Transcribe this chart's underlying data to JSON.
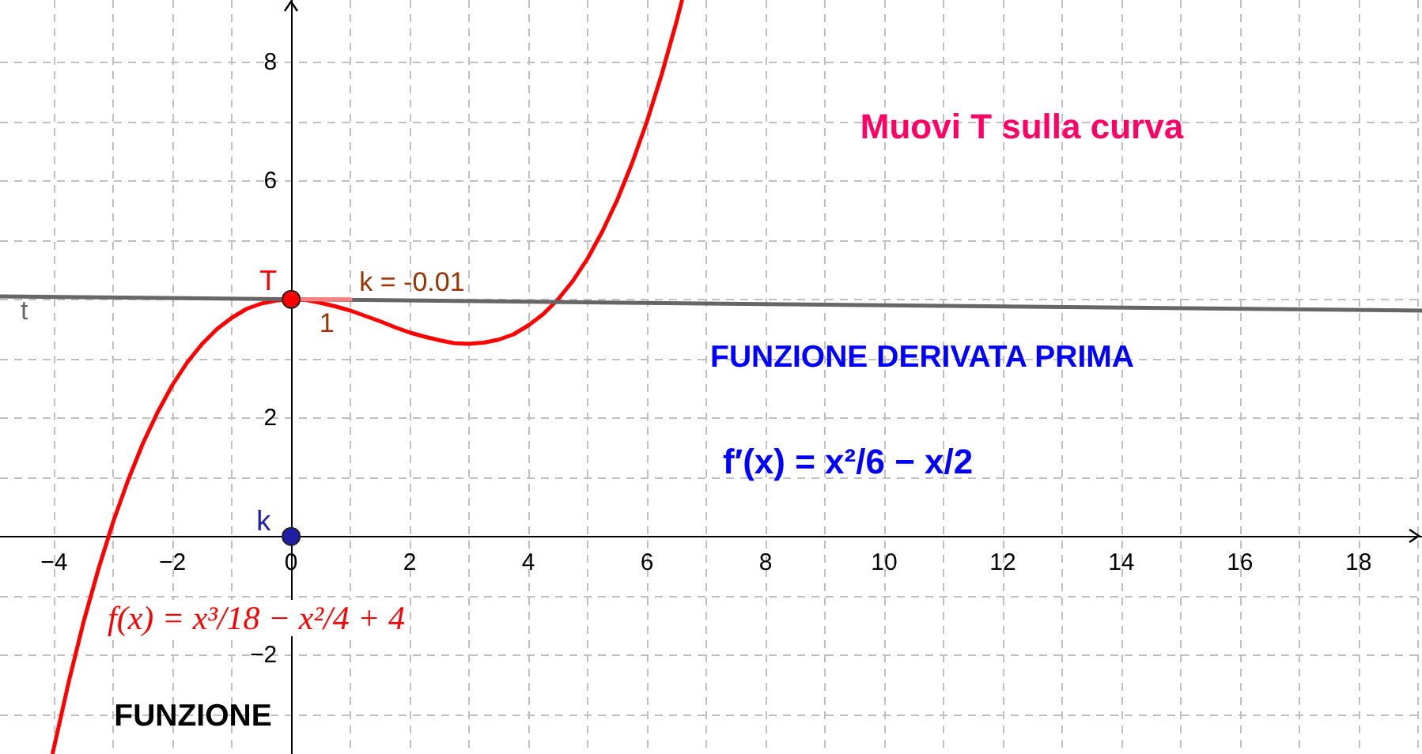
{
  "chart_data": {
    "type": "line",
    "annotations": [
      "Muovi T sulla curva",
      "FUNZIONE DERIVATA PRIMA",
      "f′(x) = x²/6 − x/2",
      "f(x) = x³/18 − x²/4 + 4",
      "FUNZIONE",
      {
        "text": "k = -0.01",
        "x": 1.15,
        "y": 4
      },
      {
        "text": "1",
        "x": 0.6,
        "y": 4
      }
    ],
    "xlim": [
      -4.91,
      19.07
    ],
    "ylim": [
      -3.67,
      9.05
    ],
    "xticks": [
      {
        "value": -4,
        "label": "−4"
      },
      {
        "value": -3,
        "label": null
      },
      {
        "value": -2,
        "label": "−2"
      },
      {
        "value": -1,
        "label": null
      },
      0,
      {
        "value": 1,
        "label": null
      },
      2,
      {
        "value": 3,
        "label": null
      },
      4,
      {
        "value": 5,
        "label": null
      },
      6,
      {
        "value": 7,
        "label": null
      },
      8,
      {
        "value": 9,
        "label": null
      },
      10,
      {
        "value": 11,
        "label": null
      },
      12,
      {
        "value": 13,
        "label": null
      },
      14,
      {
        "value": 15,
        "label": null
      },
      16,
      {
        "value": 17,
        "label": null
      },
      18,
      {
        "value": 19,
        "label": null
      }
    ],
    "yticks": [
      {
        "value": -3,
        "label": null
      },
      {
        "value": -2,
        "label": "−2"
      },
      {
        "value": -1,
        "label": null
      },
      {
        "value": 0,
        "label": null
      },
      {
        "value": 1,
        "label": null
      },
      2,
      {
        "value": 3,
        "label": null
      },
      {
        "value": 4,
        "label": null
      },
      {
        "value": 5,
        "label": null
      },
      6,
      {
        "value": 7,
        "label": null
      },
      8
    ],
    "grid": true,
    "series": [
      {
        "color": "#ff0000",
        "marker": "none",
        "x": [
          -4.02,
          -3.75,
          -3.5,
          -3.25,
          -3,
          -2.75,
          -2.5,
          -2.25,
          -2,
          -1.75,
          -1.5,
          -1.25,
          -1,
          -0.75,
          -0.5,
          -0.25,
          0,
          0.25,
          0.5,
          0.75,
          1,
          1.25,
          1.5,
          1.75,
          2,
          2.25,
          2.5,
          2.75,
          3,
          3.25,
          3.5,
          3.75,
          4,
          4.25,
          4.5,
          4.75,
          5,
          5.25,
          5.5,
          5.75,
          6,
          6.25,
          6.5,
          6.59
        ],
        "values": [
          -3.65,
          -2.45,
          -1.44,
          -0.55,
          0.25,
          0.95,
          1.57,
          2.1,
          2.56,
          2.94,
          3.25,
          3.5,
          3.69,
          3.84,
          3.93,
          3.98,
          4,
          3.99,
          3.94,
          3.88,
          3.81,
          3.72,
          3.63,
          3.53,
          3.44,
          3.37,
          3.31,
          3.26,
          3.25,
          3.27,
          3.32,
          3.41,
          3.56,
          3.75,
          4.0,
          4.31,
          4.69,
          5.15,
          5.68,
          6.3,
          7,
          7.8,
          8.69,
          9.04
        ]
      },
      {
        "name": "t",
        "color": "#666666",
        "marker": "none",
        "x": [
          -4.91,
          19.07
        ],
        "values": [
          4.05,
          3.81
        ]
      },
      {
        "color": "#ff8080",
        "marker": "none",
        "x": [
          0,
          1
        ],
        "values": [
          4,
          4
        ]
      },
      {
        "name": "T",
        "type": "scatter",
        "color": "#ff0000",
        "marker": "circle",
        "x": [
          0
        ],
        "values": [
          4
        ]
      },
      {
        "name": "k",
        "type": "scatter",
        "color": "#1f1fa6",
        "marker": "circle",
        "x": [
          0
        ],
        "values": [
          0
        ]
      }
    ]
  }
}
